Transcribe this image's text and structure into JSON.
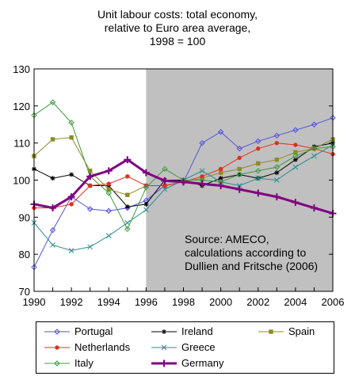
{
  "chart_data": {
    "type": "line",
    "title_lines": [
      "Unit labour costs: total economy,",
      "relative to Euro area average,",
      "1998 = 100"
    ],
    "x": [
      1990,
      1991,
      1992,
      1993,
      1994,
      1995,
      1996,
      1997,
      1998,
      1999,
      2000,
      2001,
      2002,
      2003,
      2004,
      2005,
      2006
    ],
    "xlim": [
      1990,
      2006
    ],
    "ylim": [
      70,
      130
    ],
    "x_ticks": [
      "1990",
      "1992",
      "1994",
      "1996",
      "1998",
      "2000",
      "2002",
      "2004",
      "2006"
    ],
    "y_ticks": [
      "70",
      "80",
      "90",
      "100",
      "110",
      "120",
      "130"
    ],
    "shaded_region": {
      "x_start": 1996,
      "x_end": 2006,
      "color": "#c0c0c0"
    },
    "annotation": [
      "Source: AMECO,",
      "calculations according to",
      "Dullien and Fritsche (2006)"
    ],
    "legend_position": "below",
    "series": [
      {
        "name": "Portugal",
        "color": "#5050e0",
        "marker": "diamond",
        "values": [
          76.5,
          86.5,
          95.5,
          92.2,
          91.7,
          92.5,
          94.5,
          98.5,
          99.5,
          110.0,
          113.0,
          108.5,
          110.5,
          112.0,
          113.5,
          115.0,
          116.8
        ]
      },
      {
        "name": "Ireland",
        "color": "#000000",
        "marker": "star",
        "values": [
          103.0,
          100.5,
          101.5,
          98.5,
          98.5,
          92.8,
          93.5,
          100.0,
          100.0,
          98.5,
          100.5,
          101.5,
          100.5,
          102.0,
          105.5,
          109.0,
          110.0
        ]
      },
      {
        "name": "Spain",
        "color": "#8c8c28",
        "marker": "square",
        "values": [
          106.5,
          111.0,
          111.5,
          102.5,
          97.5,
          96.0,
          98.5,
          98.5,
          99.5,
          100.5,
          102.0,
          103.0,
          104.5,
          105.5,
          107.5,
          108.5,
          111.0
        ]
      },
      {
        "name": "Netherlands",
        "color": "#e03020",
        "marker": "circle",
        "values": [
          92.5,
          92.5,
          93.5,
          98.5,
          99.0,
          101.0,
          98.5,
          98.5,
          99.5,
          101.0,
          103.0,
          106.0,
          108.5,
          110.0,
          109.5,
          108.5,
          107.0
        ]
      },
      {
        "name": "Greece",
        "color": "#2a8c8c",
        "marker": "x",
        "values": [
          88.5,
          82.5,
          81.0,
          82.0,
          85.0,
          88.5,
          92.0,
          97.5,
          100.0,
          102.5,
          99.5,
          98.5,
          100.5,
          100.0,
          103.5,
          106.5,
          109.5
        ]
      },
      {
        "name": "Italy",
        "color": "#3c9c3c",
        "marker": "diamond",
        "values": [
          117.5,
          121.0,
          115.5,
          101.0,
          96.5,
          86.8,
          98.0,
          103.0,
          100.0,
          100.0,
          99.5,
          101.5,
          102.5,
          103.5,
          106.5,
          108.5,
          109.0
        ]
      },
      {
        "name": "Germany",
        "color": "#800080",
        "marker": "plus",
        "bold": true,
        "values": [
          93.5,
          92.5,
          95.5,
          101.0,
          102.5,
          105.5,
          102.0,
          99.8,
          99.5,
          99.0,
          98.5,
          97.5,
          96.5,
          95.5,
          94.0,
          92.5,
          91.0
        ]
      }
    ]
  }
}
